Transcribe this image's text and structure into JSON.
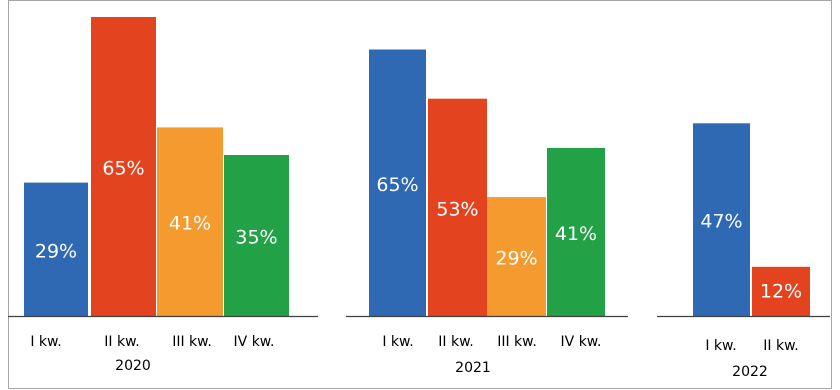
{
  "chart_data": [
    {
      "type": "bar",
      "categories": [
        "I kw.",
        "II kw.",
        "III kw.",
        "IV kw."
      ],
      "values": [
        29,
        65,
        41,
        35
      ],
      "value_labels": [
        "29%",
        "65%",
        "41%",
        "35%"
      ],
      "group_label": "2020",
      "colors": [
        "#2f69b3",
        "#e3431f",
        "#f59a2e",
        "#22a147"
      ]
    },
    {
      "type": "bar",
      "categories": [
        "I kw.",
        "II kw.",
        "III kw.",
        "IV kw."
      ],
      "values": [
        65,
        53,
        29,
        41
      ],
      "value_labels": [
        "65%",
        "53%",
        "29%",
        "41%"
      ],
      "group_label": "2021",
      "colors": [
        "#2f69b3",
        "#e3431f",
        "#f59a2e",
        "#22a147"
      ]
    },
    {
      "type": "bar",
      "categories": [
        "I kw.",
        "II kw."
      ],
      "values": [
        47,
        12
      ],
      "value_labels": [
        "47%",
        "12%"
      ],
      "group_label": "2022",
      "colors": [
        "#2f69b3",
        "#e3431f"
      ]
    }
  ]
}
